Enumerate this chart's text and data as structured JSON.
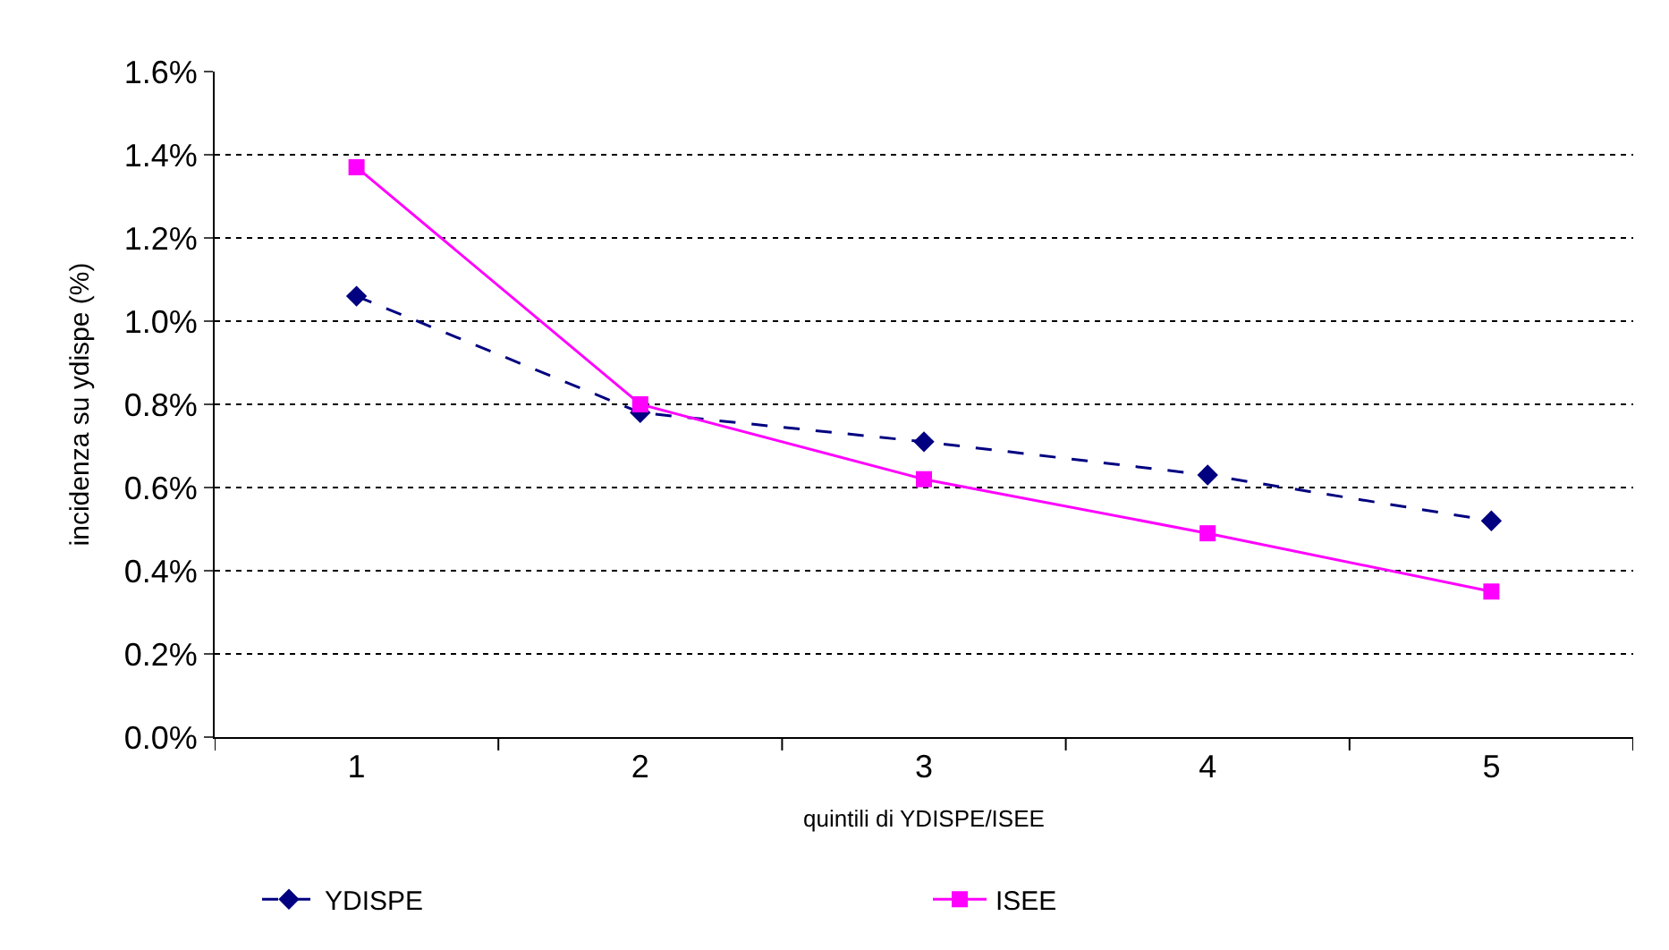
{
  "chart_data": {
    "type": "line",
    "xlabel": "quintili di YDISPE/ISEE",
    "ylabel": "incidenza su ydispe (%)",
    "categories": [
      "1",
      "2",
      "3",
      "4",
      "5"
    ],
    "series": [
      {
        "name": "YDISPE",
        "color": "#000080",
        "values": [
          1.06,
          0.78,
          0.71,
          0.63,
          0.52
        ],
        "marker": "diamond",
        "line_style": "dashed"
      },
      {
        "name": "ISEE",
        "color": "#ff00ff",
        "values": [
          1.37,
          0.8,
          0.62,
          0.49,
          0.35
        ],
        "marker": "square",
        "line_style": "solid"
      }
    ],
    "ylim": [
      0,
      1.6
    ],
    "yticks": [
      {
        "value": 0,
        "label": "0.0%"
      },
      {
        "value": 0.2,
        "label": "0.2%"
      },
      {
        "value": 0.4,
        "label": "0.4%"
      },
      {
        "value": 0.6,
        "label": "0.6%"
      },
      {
        "value": 0.8,
        "label": "0.8%"
      },
      {
        "value": 1.0,
        "label": "1.0%"
      },
      {
        "value": 1.2,
        "label": "1.2%"
      },
      {
        "value": 1.4,
        "label": "1.4%"
      },
      {
        "value": 1.6,
        "label": "1.6%"
      }
    ],
    "grid": "y",
    "legend": "bottom"
  }
}
